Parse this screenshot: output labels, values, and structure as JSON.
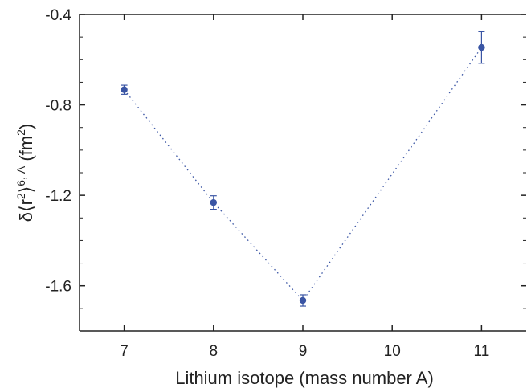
{
  "chart_data": {
    "type": "scatter",
    "title": "",
    "xlabel": "Lithium isotope (mass number A)",
    "ylabel": {
      "prefix": "δ⟨r",
      "exp_left": "2",
      "exp_right": "6, A",
      "suffix_before": "⟩",
      "unit_prefix": " (fm",
      "unit_exp": "2",
      "unit_suffix": ")"
    },
    "xlim": [
      6.5,
      11.5
    ],
    "ylim": [
      -1.8,
      -0.4
    ],
    "xticks": [
      7,
      8,
      9,
      10,
      11
    ],
    "xtick_labels": [
      "7",
      "8",
      "9",
      "10",
      "11"
    ],
    "yticks": [
      -1.6,
      -1.2,
      -0.8,
      -0.4
    ],
    "ytick_labels": [
      "-1.6",
      "-1.2",
      "-0.8",
      "-0.4"
    ],
    "y_minor_step": 0.1,
    "series": [
      {
        "x": [
          7,
          8,
          9,
          11
        ],
        "y": [
          -0.733,
          -1.232,
          -1.665,
          -0.546
        ],
        "yerr": [
          0.02,
          0.03,
          0.025,
          0.07
        ],
        "marker": "circle",
        "connector": "dotted",
        "color": "#3a55a4"
      }
    ],
    "grid": false
  }
}
